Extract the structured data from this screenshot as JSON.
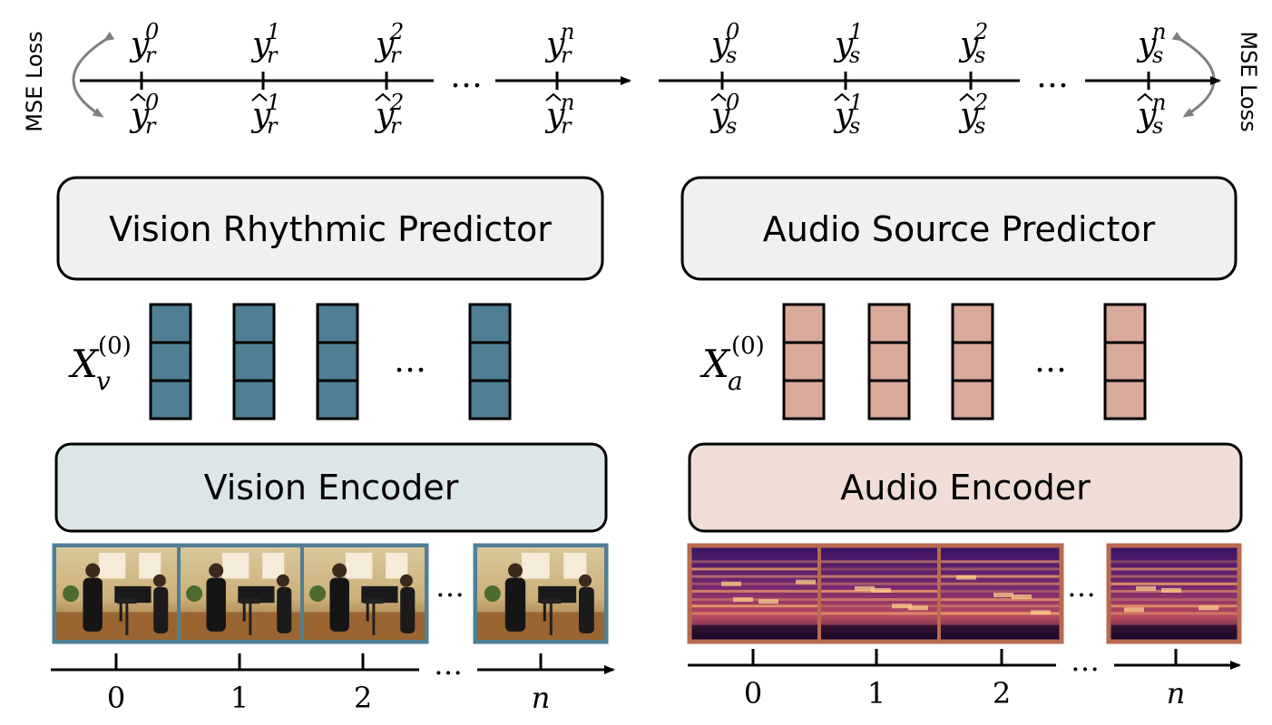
{
  "colors": {
    "vision_token": "#4f7f94",
    "audio_token": "#d9a99a",
    "vision_encoder_fill": "#dce6e8",
    "audio_encoder_fill": "#efddd6",
    "predictor_fill": "#f0f0f0",
    "vision_frame_border": "#4f7f94",
    "audio_frame_border": "#b96a4e",
    "loss_arrow": "#808080"
  },
  "loss": {
    "left_label": "MSE Loss",
    "right_label": "MSE Loss"
  },
  "rhythm_track": {
    "steps": [
      {
        "label": "y",
        "sub": "r",
        "sup": "0",
        "hat_sup": "0"
      },
      {
        "label": "y",
        "sub": "r",
        "sup": "1",
        "hat_sup": "1"
      },
      {
        "label": "y",
        "sub": "r",
        "sup": "2",
        "hat_sup": "2"
      },
      {
        "label": "y",
        "sub": "r",
        "sup": "n",
        "hat_sup": "n"
      }
    ],
    "ellipsis": "…"
  },
  "source_track": {
    "steps": [
      {
        "label": "y",
        "sub": "s",
        "sup": "0",
        "hat_sup": "0"
      },
      {
        "label": "y",
        "sub": "s",
        "sup": "1",
        "hat_sup": "1"
      },
      {
        "label": "y",
        "sub": "s",
        "sup": "2",
        "hat_sup": "2"
      },
      {
        "label": "y",
        "sub": "s",
        "sup": "n",
        "hat_sup": "n"
      }
    ],
    "ellipsis": "…"
  },
  "vision": {
    "predictor_label": "Vision Rhythmic Predictor",
    "encoder_label": "Vision Encoder",
    "feature_base": "X",
    "feature_sub": "v",
    "feature_sup": "(0)",
    "token_ellipsis": "…",
    "frame_ellipsis": "…",
    "axis_ellipsis": "…",
    "time_ticks": [
      "0",
      "1",
      "2",
      "n"
    ]
  },
  "audio": {
    "predictor_label": "Audio Source Predictor",
    "encoder_label": "Audio Encoder",
    "feature_base": "X",
    "feature_sub": "a",
    "feature_sup": "(0)",
    "token_ellipsis": "…",
    "frame_ellipsis": "…",
    "axis_ellipsis": "…",
    "time_ticks": [
      "0",
      "1",
      "2",
      "n"
    ]
  }
}
